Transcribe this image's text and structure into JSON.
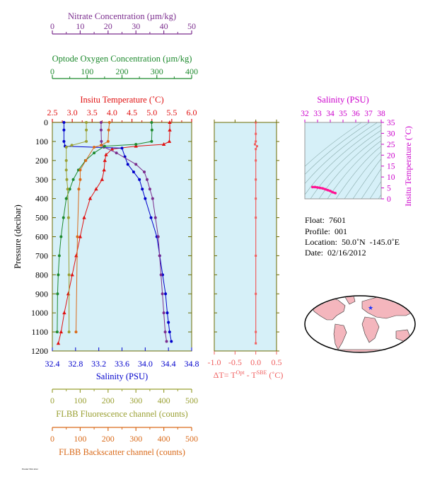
{
  "colors": {
    "nitrate": "#7b2d8e",
    "oxygen": "#1e8a2e",
    "temperature": "#e01010",
    "salinity": "#0000cc",
    "fluorescence": "#9aa033",
    "backscatter": "#d96a1a",
    "delta_t": "#f06060",
    "ts_salinity_axis": "#cc00cc",
    "ts_track": "#ff1493",
    "panel_bg": "#d6f0f8",
    "frame": "#6b6b00"
  },
  "float_info": {
    "float": "Float:  7601",
    "profile": "Profile:  001",
    "location": "Location:  50.0˚N  -145.0˚E",
    "date": "Date:  02/16/2012"
  },
  "chart_data": [
    {
      "type": "line",
      "id": "main-profile",
      "ylabel": "Pressure (decibar)",
      "ylim": [
        1200,
        0
      ],
      "yticks": [
        "0",
        "100",
        "200",
        "300",
        "400",
        "500",
        "600",
        "700",
        "800",
        "900",
        "1000",
        "1100",
        "1200"
      ],
      "axes": {
        "nitrate": {
          "label": "Nitrate Concentration (µm/kg)",
          "ticks": [
            "0",
            "10",
            "20",
            "30",
            "40",
            "50"
          ],
          "range": [
            0,
            50
          ]
        },
        "oxygen": {
          "label": "Optode Oxygen Concentration (µm/kg)",
          "ticks": [
            "0",
            "100",
            "200",
            "300",
            "400"
          ],
          "range": [
            0,
            400
          ]
        },
        "temperature": {
          "label": "Insitu Temperature (˚C)",
          "ticks": [
            "2.5",
            "3.0",
            "3.5",
            "4.0",
            "4.5",
            "5.0",
            "5.5",
            "6.0"
          ],
          "range": [
            2.5,
            6.0
          ]
        },
        "salinity": {
          "label": "Salinity (PSU)",
          "ticks": [
            "32.4",
            "32.8",
            "33.2",
            "33.6",
            "34.0",
            "34.4",
            "34.8"
          ],
          "range": [
            32.4,
            34.8
          ]
        },
        "fluorescence": {
          "label": "FLBB Fluorescence channel (counts)",
          "ticks": [
            "0",
            "100",
            "200",
            "300",
            "400",
            "500"
          ],
          "range": [
            0,
            500
          ]
        },
        "backscatter": {
          "label": "FLBB Backscatter channel (counts)",
          "ticks": [
            "0",
            "100",
            "200",
            "300",
            "400",
            "500"
          ],
          "range": [
            0,
            500
          ]
        }
      },
      "series": [
        {
          "key": "temperature",
          "marker": "triangle",
          "x": [
            5.45,
            5.45,
            5.44,
            5.3,
            4.6,
            4.0,
            3.85,
            3.82,
            3.8,
            3.75,
            3.6,
            3.45,
            3.3,
            3.2,
            3.1,
            3.0,
            2.9,
            2.8,
            2.72,
            2.65
          ],
          "y": [
            0,
            40,
            100,
            115,
            125,
            140,
            170,
            200,
            250,
            300,
            350,
            400,
            500,
            600,
            700,
            800,
            900,
            1000,
            1100,
            1160
          ]
        },
        {
          "key": "salinity",
          "marker": "dot",
          "x": [
            32.6,
            32.6,
            32.6,
            32.62,
            33.6,
            33.65,
            33.7,
            33.8,
            33.9,
            33.95,
            34.0,
            34.1,
            34.2,
            34.25,
            34.3,
            34.35,
            34.38,
            34.4,
            34.42,
            34.45
          ],
          "y": [
            0,
            40,
            100,
            125,
            135,
            180,
            220,
            260,
            300,
            350,
            400,
            500,
            600,
            700,
            800,
            900,
            1000,
            1050,
            1100,
            1150
          ]
        },
        {
          "key": "nitrate",
          "marker": "dot",
          "x": [
            17.5,
            17.5,
            17.6,
            17.7,
            18.5,
            23,
            30,
            33,
            34,
            35,
            36,
            37,
            38,
            38.5,
            39,
            39.5,
            40,
            40.5,
            41
          ],
          "y": [
            0,
            40,
            100,
            120,
            130,
            160,
            220,
            260,
            300,
            350,
            400,
            500,
            600,
            700,
            800,
            900,
            1000,
            1100,
            1150
          ]
        },
        {
          "key": "oxygen",
          "marker": "dot",
          "x": [
            285,
            286,
            285,
            240,
            150,
            120,
            95,
            75,
            60,
            50,
            40,
            32,
            25,
            20,
            17,
            15,
            14
          ],
          "y": [
            0,
            40,
            100,
            115,
            125,
            160,
            200,
            250,
            300,
            350,
            400,
            500,
            600,
            700,
            800,
            900,
            1100
          ]
        },
        {
          "key": "fluorescence",
          "marker": "dot",
          "x": [
            122,
            122,
            122,
            70,
            50,
            50,
            50,
            52,
            55,
            58,
            60,
            60
          ],
          "y": [
            0,
            40,
            100,
            120,
            130,
            200,
            250,
            300,
            350,
            500,
            800,
            1100
          ]
        },
        {
          "key": "backscatter",
          "marker": "dot",
          "x": [
            205,
            202,
            200,
            175,
            150,
            120,
            100,
            100,
            95,
            90,
            85
          ],
          "y": [
            0,
            40,
            100,
            120,
            130,
            200,
            250,
            300,
            350,
            600,
            1100
          ]
        }
      ]
    },
    {
      "type": "line",
      "id": "delta-t",
      "xlabel_main": "ΔT= T",
      "xlabel_sup1": "Opt",
      "xlabel_mid": " - T",
      "xlabel_sup2": "SBE",
      "xlabel_end": " (˚C)",
      "xticks": [
        "-1.0",
        "-0.5",
        "0.0",
        "0.5"
      ],
      "xlim": [
        -1.0,
        0.5
      ],
      "ylim": [
        1200,
        0
      ],
      "x": [
        0.0,
        0.0,
        0.0,
        -0.02,
        0.03,
        0.0,
        0.0,
        0.0,
        0.0,
        0.0,
        0.0,
        0.0,
        0.0,
        0.0
      ],
      "y": [
        0,
        60,
        100,
        115,
        125,
        140,
        200,
        300,
        400,
        500,
        700,
        900,
        1100,
        1160
      ]
    },
    {
      "type": "scatter",
      "id": "ts-diagram",
      "xlabel": "Salinity (PSU)",
      "ylabel": "Insitu Temperature (˚C)",
      "xticks": [
        "32",
        "33",
        "34",
        "35",
        "36",
        "37",
        "38"
      ],
      "yticks": [
        "0",
        "5",
        "10",
        "15",
        "20",
        "25",
        "30",
        "35"
      ],
      "xlim": [
        32,
        38
      ],
      "ylim": [
        0,
        35
      ],
      "x": [
        32.6,
        32.8,
        33.0,
        33.2,
        33.4,
        33.6,
        33.8,
        34.0,
        34.2,
        34.4
      ],
      "y": [
        5.4,
        5.4,
        5.2,
        5.0,
        4.8,
        4.4,
        4.0,
        3.6,
        3.0,
        2.6
      ]
    }
  ]
}
